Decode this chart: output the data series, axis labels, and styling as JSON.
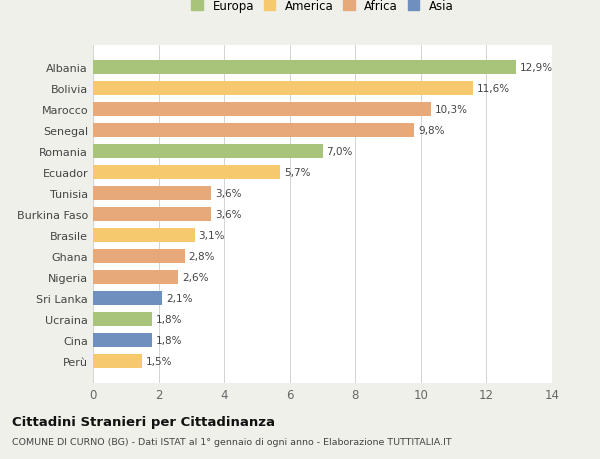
{
  "countries": [
    "Albania",
    "Bolivia",
    "Marocco",
    "Senegal",
    "Romania",
    "Ecuador",
    "Tunisia",
    "Burkina Faso",
    "Brasile",
    "Ghana",
    "Nigeria",
    "Sri Lanka",
    "Ucraina",
    "Cina",
    "Perù"
  ],
  "values": [
    12.9,
    11.6,
    10.3,
    9.8,
    7.0,
    5.7,
    3.6,
    3.6,
    3.1,
    2.8,
    2.6,
    2.1,
    1.8,
    1.8,
    1.5
  ],
  "labels": [
    "12,9%",
    "11,6%",
    "10,3%",
    "9,8%",
    "7,0%",
    "5,7%",
    "3,6%",
    "3,6%",
    "3,1%",
    "2,8%",
    "2,6%",
    "2,1%",
    "1,8%",
    "1,8%",
    "1,5%"
  ],
  "colors": [
    "#a8c47a",
    "#f7c96e",
    "#e8a97a",
    "#e8a97a",
    "#a8c47a",
    "#f7c96e",
    "#e8a97a",
    "#e8a97a",
    "#f7c96e",
    "#e8a97a",
    "#e8a97a",
    "#6f8fbf",
    "#a8c47a",
    "#6f8fbf",
    "#f7c96e"
  ],
  "legend_labels": [
    "Europa",
    "America",
    "Africa",
    "Asia"
  ],
  "legend_colors": [
    "#a8c47a",
    "#f7c96e",
    "#e8a97a",
    "#6f8fbf"
  ],
  "xlim": [
    0,
    14
  ],
  "xticks": [
    0,
    2,
    4,
    6,
    8,
    10,
    12,
    14
  ],
  "title": "Cittadini Stranieri per Cittadinanza",
  "subtitle": "COMUNE DI CURNO (BG) - Dati ISTAT al 1° gennaio di ogni anno - Elaborazione TUTTITALIA.IT",
  "background_color": "#f0f0eb",
  "plot_background": "#ffffff"
}
